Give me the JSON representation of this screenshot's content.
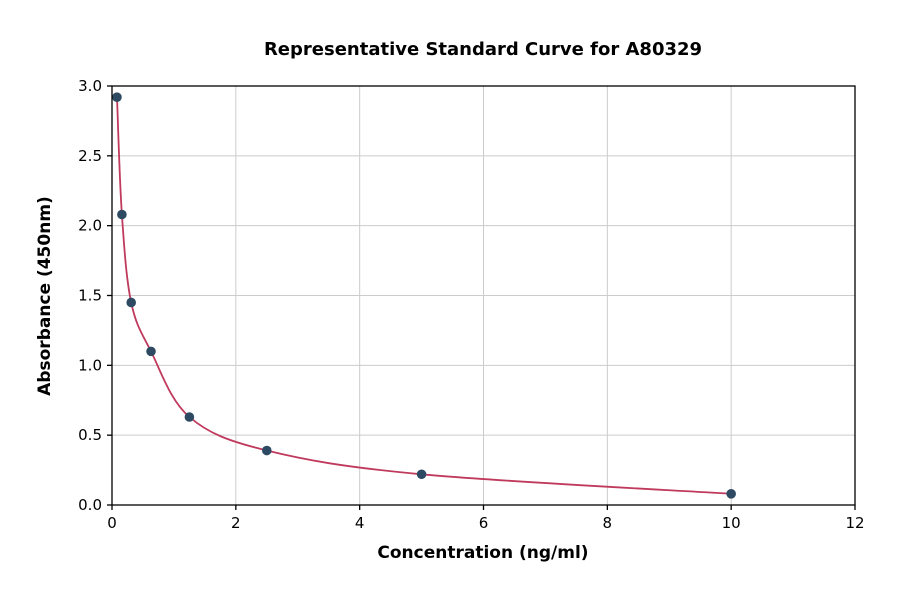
{
  "chart_data": {
    "type": "scatter",
    "title": "Representative Standard Curve for A80329",
    "xlabel": "Concentration (ng/ml)",
    "ylabel": "Absorbance (450nm)",
    "xlim": [
      0,
      12
    ],
    "ylim": [
      0.0,
      3.0
    ],
    "x_ticks": [
      "0",
      "2",
      "4",
      "6",
      "8",
      "10",
      "12"
    ],
    "y_ticks": [
      "0.0",
      "0.5",
      "1.0",
      "1.5",
      "2.0",
      "2.5",
      "3.0"
    ],
    "grid": true,
    "legend": "none",
    "points": [
      {
        "x": 0.08,
        "y": 2.92
      },
      {
        "x": 0.16,
        "y": 2.08
      },
      {
        "x": 0.31,
        "y": 1.45
      },
      {
        "x": 0.63,
        "y": 1.1
      },
      {
        "x": 1.25,
        "y": 0.63
      },
      {
        "x": 2.5,
        "y": 0.39
      },
      {
        "x": 5.0,
        "y": 0.22
      },
      {
        "x": 10.0,
        "y": 0.08
      }
    ],
    "fit_curve": "smooth-through-points",
    "colors": {
      "point_color": "#2e4a63",
      "line_color": "#c03a5e",
      "grid_color": "#cccccc",
      "border_color": "#000000",
      "background": "#ffffff"
    }
  }
}
